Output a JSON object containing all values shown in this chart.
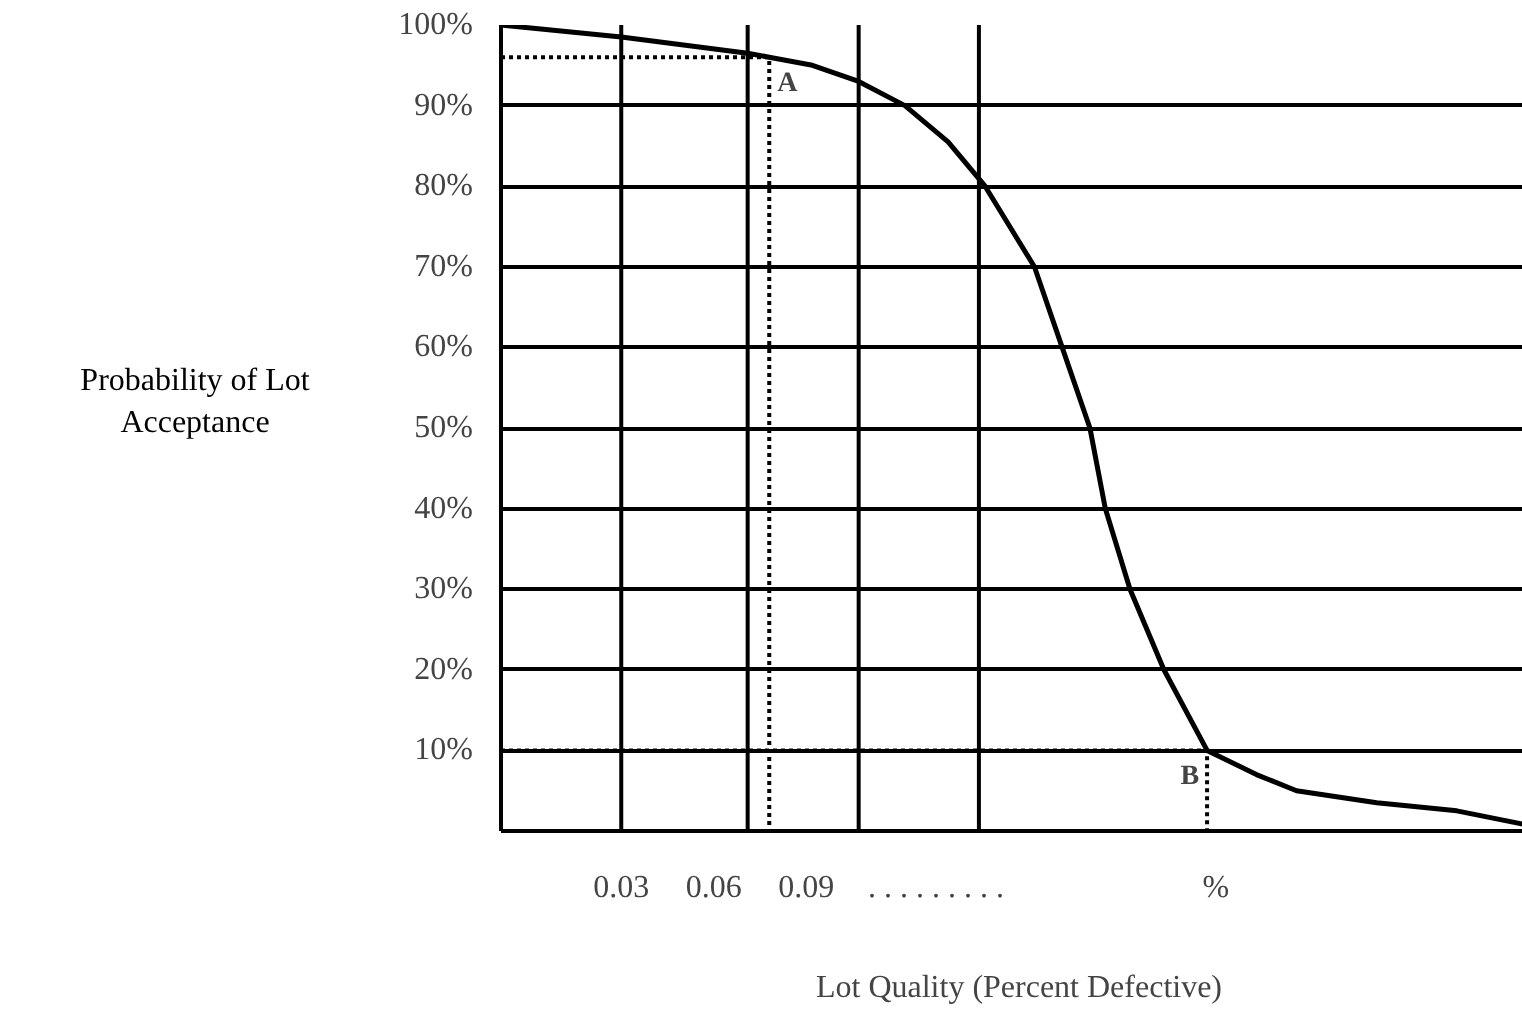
{
  "chart_data": {
    "type": "line",
    "ylabel": "Probability of Lot Acceptance",
    "xlabel": "Lot Quality (Percent Defective)",
    "xlim": [
      -0.009,
      0.327
    ],
    "ylim": [
      0,
      100
    ],
    "xticks": [
      0.03,
      0.06,
      0.09
    ],
    "yticks": [
      {
        "value": 10,
        "label": "10%"
      },
      {
        "value": 20,
        "label": "20%"
      },
      {
        "value": 30,
        "label": "30%"
      },
      {
        "value": 40,
        "label": "40%"
      },
      {
        "value": 50,
        "label": "50%"
      },
      {
        "value": 60,
        "label": "60%"
      },
      {
        "value": 70,
        "label": "70%"
      },
      {
        "value": 80,
        "label": "80%"
      },
      {
        "value": 90,
        "label": "90%"
      },
      {
        "value": 100,
        "label": "100%"
      }
    ],
    "grid": "y",
    "ref_lines": [
      {
        "axis": "x",
        "value": 0.03,
        "color": "#000000"
      },
      {
        "axis": "x",
        "value": 0.071,
        "color": "#000000"
      },
      {
        "axis": "x",
        "value": 0.107,
        "color": "#000000"
      },
      {
        "axis": "x",
        "value": 0.146,
        "color": "#000000"
      }
    ],
    "annotations": [
      {
        "text": "A",
        "x": 0.078,
        "y": 96
      },
      {
        "text": "B",
        "x": 0.22,
        "y": 10
      },
      ". . . . . . . . .",
      "%"
    ],
    "x": [
      -0.009,
      0.03,
      0.071,
      0.078,
      0.092,
      0.107,
      0.122,
      0.136,
      0.148,
      0.156,
      0.164,
      0.173,
      0.182,
      0.187,
      0.195,
      0.206,
      0.22,
      0.236,
      0.249,
      0.275,
      0.301,
      0.327
    ],
    "series": [
      {
        "color": "#000000",
        "values": [
          100,
          98.5,
          96.5,
          96,
          95,
          93,
          90,
          85.5,
          80,
          75,
          70,
          60,
          50,
          40,
          30,
          20,
          10,
          7,
          5,
          3.5,
          2.5,
          0.5
        ]
      },
      {
        "color": "#000000",
        "line_style": "dotted",
        "x": [
          -0.009,
          0.078,
          0.078
        ],
        "values": [
          96,
          96,
          0
        ]
      },
      {
        "color": "#000000",
        "line_style": "dotted",
        "x": [
          -0.009,
          0.22,
          0.22
        ],
        "values": [
          10,
          10,
          0
        ]
      }
    ]
  }
}
